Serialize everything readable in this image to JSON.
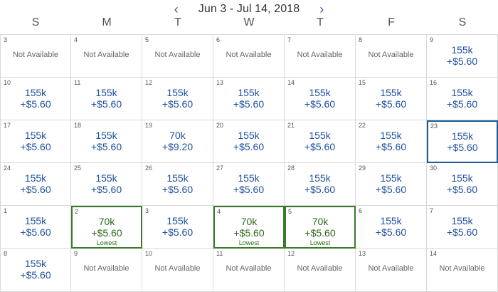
{
  "header": {
    "range": "Jun 3 - Jul 14, 2018",
    "prev_icon": "chevron-left-icon",
    "next_icon": "chevron-right-icon"
  },
  "weekdays": [
    "S",
    "M",
    "T",
    "W",
    "T",
    "F",
    "S"
  ],
  "colors": {
    "price": "#1f4f9f",
    "lowest": "#2d6a1a",
    "lowest_border": "#3b7a2a",
    "selected_border": "#1a5a9a",
    "grid": "#d9d9d9"
  },
  "cells": [
    {
      "day": "3",
      "available": false,
      "text": "Not Available"
    },
    {
      "day": "4",
      "available": false,
      "text": "Not Available"
    },
    {
      "day": "5",
      "available": false,
      "text": "Not Available"
    },
    {
      "day": "6",
      "available": false,
      "text": "Not Available"
    },
    {
      "day": "7",
      "available": false,
      "text": "Not Available"
    },
    {
      "day": "8",
      "available": false,
      "text": "Not Available"
    },
    {
      "day": "9",
      "available": true,
      "miles": "155k",
      "fee": "+$5.60"
    },
    {
      "day": "10",
      "available": true,
      "miles": "155k",
      "fee": "+$5.60"
    },
    {
      "day": "11",
      "available": true,
      "miles": "155k",
      "fee": "+$5.60"
    },
    {
      "day": "12",
      "available": true,
      "miles": "155k",
      "fee": "+$5.60"
    },
    {
      "day": "13",
      "available": true,
      "miles": "155k",
      "fee": "+$5.60"
    },
    {
      "day": "14",
      "available": true,
      "miles": "155k",
      "fee": "+$5.60"
    },
    {
      "day": "15",
      "available": true,
      "miles": "155k",
      "fee": "+$5.60"
    },
    {
      "day": "16",
      "available": true,
      "miles": "155k",
      "fee": "+$5.60"
    },
    {
      "day": "17",
      "available": true,
      "miles": "155k",
      "fee": "+$5.60"
    },
    {
      "day": "18",
      "available": true,
      "miles": "155k",
      "fee": "+$5.60"
    },
    {
      "day": "19",
      "available": true,
      "miles": "70k",
      "fee": "+$9.20"
    },
    {
      "day": "20",
      "available": true,
      "miles": "155k",
      "fee": "+$5.60"
    },
    {
      "day": "21",
      "available": true,
      "miles": "155k",
      "fee": "+$5.60"
    },
    {
      "day": "22",
      "available": true,
      "miles": "155k",
      "fee": "+$5.60"
    },
    {
      "day": "23",
      "available": true,
      "miles": "155k",
      "fee": "+$5.60",
      "selected": true
    },
    {
      "day": "24",
      "available": true,
      "miles": "155k",
      "fee": "+$5.60"
    },
    {
      "day": "25",
      "available": true,
      "miles": "155k",
      "fee": "+$5.60"
    },
    {
      "day": "26",
      "available": true,
      "miles": "155k",
      "fee": "+$5.60"
    },
    {
      "day": "27",
      "available": true,
      "miles": "155k",
      "fee": "+$5.60"
    },
    {
      "day": "28",
      "available": true,
      "miles": "155k",
      "fee": "+$5.60"
    },
    {
      "day": "29",
      "available": true,
      "miles": "155k",
      "fee": "+$5.60"
    },
    {
      "day": "30",
      "available": true,
      "miles": "155k",
      "fee": "+$5.60"
    },
    {
      "day": "1",
      "available": true,
      "miles": "155k",
      "fee": "+$5.60"
    },
    {
      "day": "2",
      "available": true,
      "miles": "70k",
      "fee": "+$5.60",
      "lowest": true,
      "lowest_label": "Lowest"
    },
    {
      "day": "3",
      "available": true,
      "miles": "155k",
      "fee": "+$5.60"
    },
    {
      "day": "4",
      "available": true,
      "miles": "70k",
      "fee": "+$5.60",
      "lowest": true,
      "lowest_label": "Lowest"
    },
    {
      "day": "5",
      "available": true,
      "miles": "70k",
      "fee": "+$5.60",
      "lowest": true,
      "lowest_label": "Lowest"
    },
    {
      "day": "6",
      "available": true,
      "miles": "155k",
      "fee": "+$5.60"
    },
    {
      "day": "7",
      "available": true,
      "miles": "155k",
      "fee": "+$5.60"
    },
    {
      "day": "8",
      "available": true,
      "miles": "155k",
      "fee": "+$5.60"
    },
    {
      "day": "9",
      "available": false,
      "text": "Not Available"
    },
    {
      "day": "10",
      "available": false,
      "text": "Not Available"
    },
    {
      "day": "11",
      "available": false,
      "text": "Not Available"
    },
    {
      "day": "12",
      "available": false,
      "text": "Not Available"
    },
    {
      "day": "13",
      "available": false,
      "text": "Not Available"
    },
    {
      "day": "14",
      "available": false,
      "text": "Not Available"
    }
  ]
}
